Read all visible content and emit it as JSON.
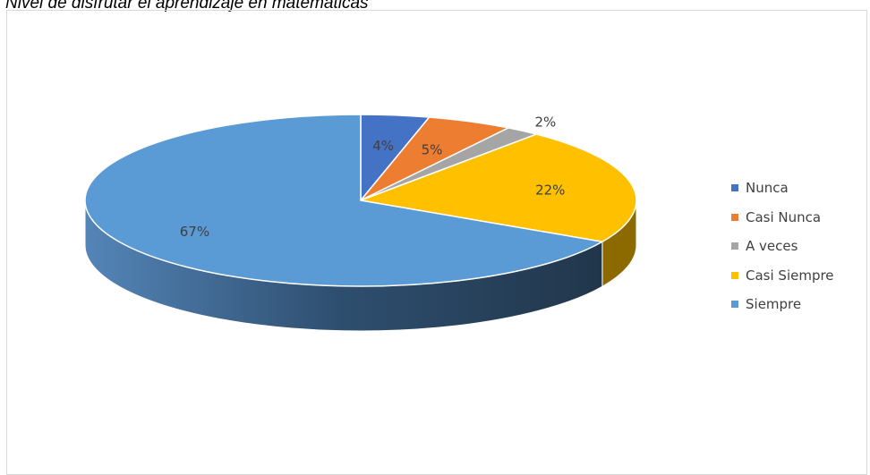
{
  "caption": "Nivel de disfrutar el aprendizaje en matemáticas",
  "chart_data": {
    "type": "pie",
    "title": "",
    "categories": [
      "Nunca",
      "Casi Nunca",
      "A veces",
      "Casi Siempre",
      "Siempre"
    ],
    "values": [
      4,
      5,
      2,
      22,
      67
    ],
    "labels": [
      "4%",
      "5%",
      "2%",
      "22%",
      "67%"
    ],
    "colors": [
      "#4472C4",
      "#ED7D31",
      "#A5A5A5",
      "#FFC000",
      "#5B9BD5"
    ],
    "legend_position": "right",
    "style": "3d-exploded-depth"
  }
}
